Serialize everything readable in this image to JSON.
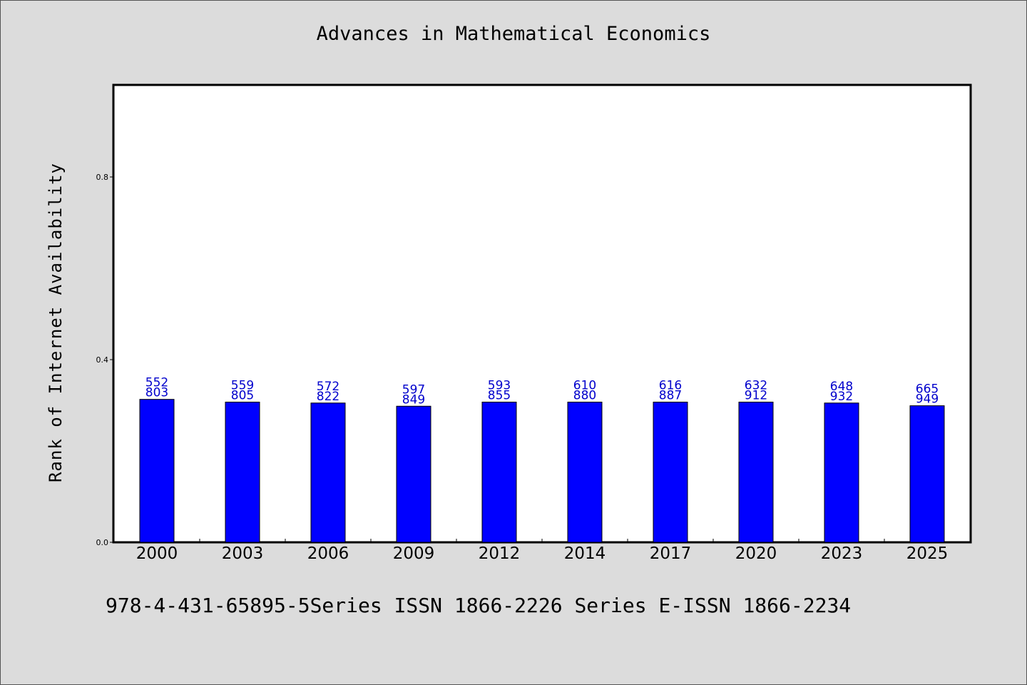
{
  "chart_data": {
    "type": "bar",
    "title": "Advances in Mathematical Economics",
    "ylabel": "Rank of Internet Availability",
    "xlabel": "",
    "categories": [
      "2000",
      "2003",
      "2006",
      "2009",
      "2012",
      "2014",
      "2017",
      "2020",
      "2023",
      "2025"
    ],
    "values": [
      0.313,
      0.307,
      0.305,
      0.298,
      0.307,
      0.307,
      0.307,
      0.307,
      0.305,
      0.299
    ],
    "ylim": [
      0,
      1
    ],
    "yticks": [
      0.0,
      0.4,
      0.8
    ],
    "ytick_labels": [
      "0.0",
      "0.4",
      "0.8"
    ],
    "data_labels_top": [
      "552",
      "559",
      "572",
      "597",
      "593",
      "610",
      "616",
      "632",
      "648",
      "665"
    ],
    "data_labels_bottom": [
      "803",
      "805",
      "822",
      "849",
      "855",
      "880",
      "887",
      "912",
      "932",
      "949"
    ],
    "bar_color": "#0000ff",
    "label_color": "#0000cc",
    "grid": false,
    "legend": "none"
  },
  "footer": "978-4-431-65895-5Series ISSN 1866-2226 Series E-ISSN 1866-2234"
}
